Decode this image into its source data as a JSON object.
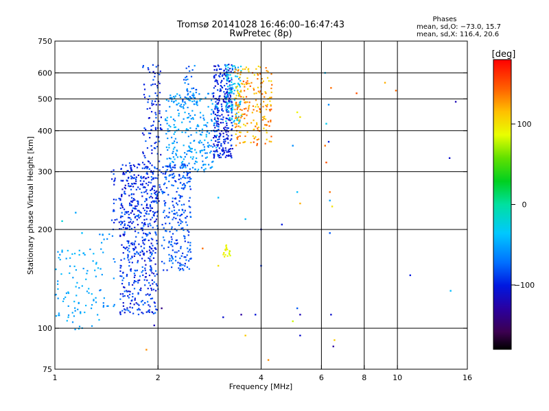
{
  "chart_data": {
    "type": "scatter",
    "title": "Tromsø 20141028 16:46:00–16:47:43",
    "subtitle": "RwPretec (8p)",
    "xlabel": "Frequency [MHz]",
    "ylabel": "Stationary phase Virtual Height [km]",
    "x_scale": "log",
    "y_scale": "log",
    "xlim": [
      1,
      16
    ],
    "ylim": [
      75,
      750
    ],
    "x_ticks": [
      1,
      2,
      4,
      6,
      8,
      10,
      16
    ],
    "y_ticks": [
      75,
      100,
      200,
      300,
      400,
      500,
      600,
      750
    ],
    "x_grid": [
      2,
      4,
      6,
      8,
      10
    ],
    "y_grid": [
      100,
      200,
      300,
      400,
      500,
      600
    ],
    "phase_stats": {
      "title": "Phases",
      "line_o": "mean, sd,O: −73.0, 15.7",
      "line_x": "mean, sd,X: 116.4, 20.6"
    },
    "colorbar": {
      "label": "[deg]",
      "range": [
        -180,
        180
      ],
      "ticks": [
        100,
        0,
        -100
      ],
      "tick_labels": [
        "100",
        "0",
        "−100"
      ]
    },
    "series": [
      {
        "clusters": [
          {
            "x": [
              1.55,
              2.0
            ],
            "y": [
              110,
              320
            ],
            "n": 500,
            "phase": [
              -115,
              -70
            ]
          },
          {
            "x": [
              1.45,
              1.75
            ],
            "y": [
              200,
              320
            ],
            "n": 60,
            "phase": [
              -110,
              -80
            ]
          },
          {
            "x": [
              1.8,
              2.05
            ],
            "y": [
              240,
              640
            ],
            "n": 140,
            "phase": [
              -115,
              -75
            ]
          },
          {
            "x": [
              2.05,
              2.5
            ],
            "y": [
              150,
              320
            ],
            "n": 260,
            "phase": [
              -100,
              -65
            ]
          },
          {
            "x": [
              2.1,
              3.0
            ],
            "y": [
              300,
              520
            ],
            "n": 260,
            "phase": [
              -70,
              -40
            ]
          },
          {
            "x": [
              2.35,
              2.6
            ],
            "y": [
              480,
              640
            ],
            "n": 40,
            "phase": [
              -90,
              -55
            ]
          },
          {
            "x": [
              2.9,
              3.3
            ],
            "y": [
              330,
              640
            ],
            "n": 280,
            "phase": [
              -120,
              -80
            ]
          },
          {
            "x": [
              3.15,
              3.5
            ],
            "y": [
              420,
              640
            ],
            "n": 110,
            "phase": [
              -60,
              -20
            ]
          },
          {
            "x": [
              3.35,
              4.3
            ],
            "y": [
              360,
              630
            ],
            "n": 220,
            "phase": [
              100,
              150
            ]
          },
          {
            "x": [
              3.05,
              3.25
            ],
            "y": [
              165,
              180
            ],
            "n": 20,
            "phase": [
              80,
              100
            ]
          },
          {
            "x": [
              1.0,
              1.35
            ],
            "y": [
              98,
              175
            ],
            "n": 90,
            "phase": [
              -60,
              -40
            ]
          },
          {
            "x": [
              1.35,
              1.5
            ],
            "y": [
              115,
              200
            ],
            "n": 25,
            "phase": [
              -70,
              -50
            ]
          }
        ]
      }
    ],
    "scattered_points": [
      {
        "x": 6.15,
        "y": 600,
        "phase": -40
      },
      {
        "x": 6.4,
        "y": 540,
        "phase": 140
      },
      {
        "x": 6.3,
        "y": 480,
        "phase": -60
      },
      {
        "x": 6.3,
        "y": 370,
        "phase": -100
      },
      {
        "x": 6.35,
        "y": 260,
        "phase": 140
      },
      {
        "x": 6.35,
        "y": 245,
        "phase": -50
      },
      {
        "x": 6.45,
        "y": 235,
        "phase": 100
      },
      {
        "x": 6.35,
        "y": 195,
        "phase": -80
      },
      {
        "x": 6.4,
        "y": 110,
        "phase": -110
      },
      {
        "x": 6.55,
        "y": 92,
        "phase": 110
      },
      {
        "x": 6.5,
        "y": 88,
        "phase": -130
      },
      {
        "x": 6.15,
        "y": 360,
        "phase": 140
      },
      {
        "x": 6.2,
        "y": 320,
        "phase": 150
      },
      {
        "x": 7.6,
        "y": 520,
        "phase": 150
      },
      {
        "x": 9.2,
        "y": 560,
        "phase": 120
      },
      {
        "x": 9.9,
        "y": 530,
        "phase": 140
      },
      {
        "x": 10.9,
        "y": 145,
        "phase": -100
      },
      {
        "x": 14.2,
        "y": 330,
        "phase": -110
      },
      {
        "x": 14.3,
        "y": 130,
        "phase": -40
      },
      {
        "x": 14.8,
        "y": 490,
        "phase": -120
      },
      {
        "x": 5.2,
        "y": 440,
        "phase": 100
      },
      {
        "x": 5.2,
        "y": 240,
        "phase": 120
      },
      {
        "x": 4.95,
        "y": 360,
        "phase": -60
      },
      {
        "x": 5.1,
        "y": 260,
        "phase": -40
      },
      {
        "x": 5.1,
        "y": 115,
        "phase": -80
      },
      {
        "x": 5.2,
        "y": 110,
        "phase": -120
      },
      {
        "x": 5.2,
        "y": 95,
        "phase": -110
      },
      {
        "x": 4.95,
        "y": 105,
        "phase": 80
      },
      {
        "x": 4.6,
        "y": 207,
        "phase": -100
      },
      {
        "x": 4.0,
        "y": 200,
        "phase": -110
      },
      {
        "x": 4.0,
        "y": 155,
        "phase": -95
      },
      {
        "x": 3.6,
        "y": 215,
        "phase": -40
      },
      {
        "x": 3.5,
        "y": 110,
        "phase": -130
      },
      {
        "x": 3.85,
        "y": 110,
        "phase": -105
      },
      {
        "x": 3.6,
        "y": 95,
        "phase": 110
      },
      {
        "x": 4.2,
        "y": 80,
        "phase": 130
      },
      {
        "x": 3.0,
        "y": 155,
        "phase": 100
      },
      {
        "x": 3.0,
        "y": 250,
        "phase": -40
      },
      {
        "x": 3.1,
        "y": 108,
        "phase": -110
      },
      {
        "x": 2.7,
        "y": 175,
        "phase": 140
      },
      {
        "x": 1.85,
        "y": 86,
        "phase": 130
      },
      {
        "x": 1.05,
        "y": 212,
        "phase": -20
      },
      {
        "x": 1.15,
        "y": 225,
        "phase": -50
      },
      {
        "x": 1.2,
        "y": 195,
        "phase": -40
      },
      {
        "x": 5.1,
        "y": 455,
        "phase": 90
      },
      {
        "x": 6.2,
        "y": 420,
        "phase": -30
      },
      {
        "x": 2.05,
        "y": 115,
        "phase": -140
      },
      {
        "x": 1.95,
        "y": 102,
        "phase": -120
      }
    ]
  }
}
